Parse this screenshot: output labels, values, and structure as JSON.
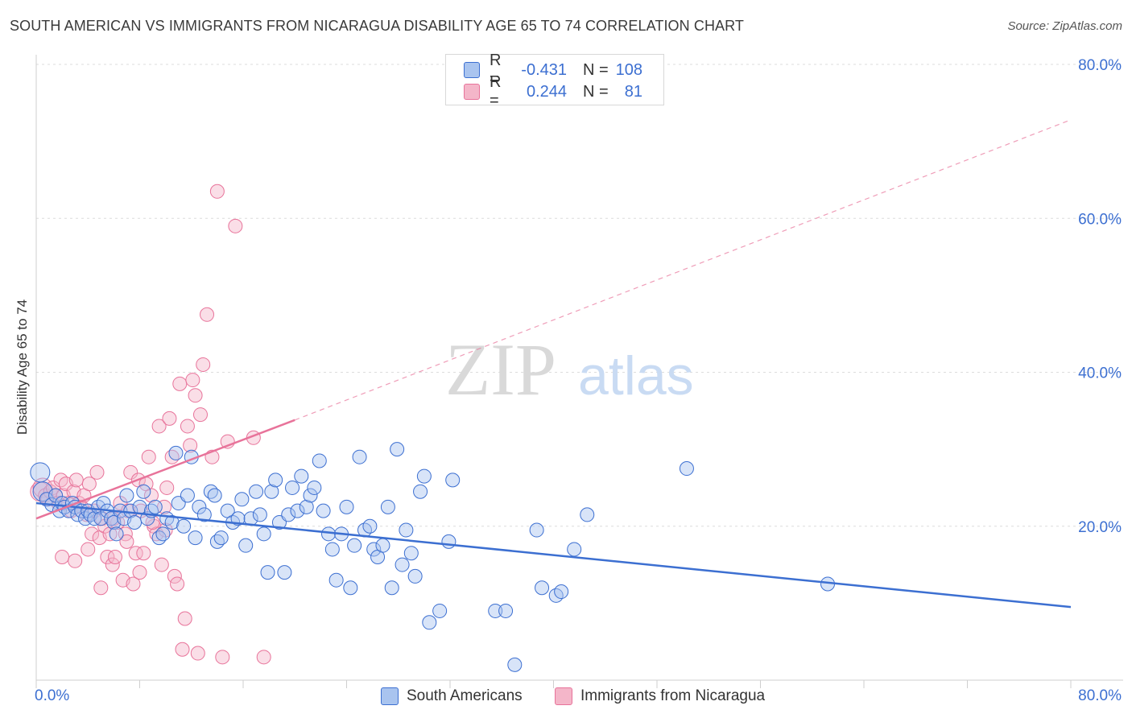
{
  "title": "SOUTH AMERICAN VS IMMIGRANTS FROM NICARAGUA DISABILITY AGE 65 TO 74 CORRELATION CHART",
  "source": "Source: ZipAtlas.com",
  "watermark": {
    "zip": "ZIP",
    "atlas": "atlas"
  },
  "legend": {
    "rows": [
      {
        "r_label": "R =",
        "r_value": "-0.431",
        "n_label": "N =",
        "n_value": "108"
      },
      {
        "r_label": "R =",
        "r_value": "0.244",
        "n_label": "N =",
        "n_value": "81"
      }
    ]
  },
  "chart_data": {
    "type": "scatter",
    "title": "SOUTH AMERICAN VS IMMIGRANTS FROM NICARAGUA DISABILITY AGE 65 TO 74 CORRELATION CHART",
    "xlabel": "",
    "ylabel": "Disability Age 65 to 74",
    "xlim": [
      0,
      80
    ],
    "ylim": [
      0,
      80
    ],
    "x_tick_labels": [
      "0.0%",
      "80.0%"
    ],
    "y_tick_labels": [
      "20.0%",
      "40.0%",
      "60.0%",
      "80.0%"
    ],
    "y_ticks": [
      20,
      40,
      60,
      80
    ],
    "colors": {
      "blue": "#3c6fd1",
      "blue_fill": "#a9c4ef",
      "pink": "#e8739a",
      "pink_fill": "#f4b6c9"
    },
    "series": [
      {
        "name": "South Americans",
        "color": "#3c6fd1",
        "r": -0.431,
        "n": 108,
        "trend": {
          "x": [
            0,
            80
          ],
          "y": [
            23.0,
            9.5
          ]
        },
        "points": [
          [
            0.3,
            27
          ],
          [
            0.5,
            24.5
          ],
          [
            0.8,
            23.5
          ],
          [
            1.2,
            22.8
          ],
          [
            1.5,
            24
          ],
          [
            1.8,
            22
          ],
          [
            2.0,
            23
          ],
          [
            2.2,
            22.5
          ],
          [
            2.5,
            22
          ],
          [
            2.8,
            23
          ],
          [
            3.0,
            22.5
          ],
          [
            3.2,
            21.5
          ],
          [
            3.5,
            22
          ],
          [
            3.8,
            21
          ],
          [
            4.0,
            22
          ],
          [
            4.2,
            21.5
          ],
          [
            4.5,
            21
          ],
          [
            4.8,
            22.5
          ],
          [
            5.0,
            21
          ],
          [
            5.2,
            23
          ],
          [
            5.5,
            22
          ],
          [
            5.8,
            21
          ],
          [
            6.0,
            20.5
          ],
          [
            6.2,
            19
          ],
          [
            6.5,
            22
          ],
          [
            6.8,
            21
          ],
          [
            7.0,
            24
          ],
          [
            7.3,
            22
          ],
          [
            7.6,
            20.5
          ],
          [
            8.0,
            22.5
          ],
          [
            8.3,
            24.5
          ],
          [
            8.6,
            21
          ],
          [
            8.9,
            22
          ],
          [
            9.2,
            22.5
          ],
          [
            9.5,
            18.5
          ],
          [
            9.8,
            19
          ],
          [
            10.1,
            21
          ],
          [
            10.5,
            20.5
          ],
          [
            10.8,
            29.5
          ],
          [
            11.0,
            23
          ],
          [
            11.4,
            20
          ],
          [
            11.7,
            24
          ],
          [
            12.0,
            29
          ],
          [
            12.3,
            18.5
          ],
          [
            12.6,
            22.5
          ],
          [
            13.0,
            21.5
          ],
          [
            13.5,
            24.5
          ],
          [
            13.8,
            24
          ],
          [
            14.0,
            18
          ],
          [
            14.3,
            18.5
          ],
          [
            14.8,
            22
          ],
          [
            15.2,
            20.5
          ],
          [
            15.6,
            21
          ],
          [
            15.9,
            23.5
          ],
          [
            16.2,
            17.5
          ],
          [
            16.6,
            21
          ],
          [
            17.0,
            24.5
          ],
          [
            17.3,
            21.5
          ],
          [
            17.6,
            19
          ],
          [
            17.9,
            14
          ],
          [
            18.2,
            24.5
          ],
          [
            18.5,
            26
          ],
          [
            18.8,
            20.5
          ],
          [
            19.2,
            14
          ],
          [
            19.5,
            21.5
          ],
          [
            19.8,
            25
          ],
          [
            20.2,
            22
          ],
          [
            20.5,
            26.5
          ],
          [
            20.9,
            22.5
          ],
          [
            21.2,
            24
          ],
          [
            21.5,
            25
          ],
          [
            21.9,
            28.5
          ],
          [
            22.2,
            22
          ],
          [
            22.6,
            19
          ],
          [
            22.9,
            17
          ],
          [
            23.2,
            13
          ],
          [
            23.6,
            19
          ],
          [
            24.0,
            22.5
          ],
          [
            24.3,
            12
          ],
          [
            24.6,
            17.5
          ],
          [
            25.0,
            29
          ],
          [
            25.4,
            19.5
          ],
          [
            25.8,
            20
          ],
          [
            26.1,
            17
          ],
          [
            26.4,
            16
          ],
          [
            26.8,
            17.5
          ],
          [
            27.2,
            22.5
          ],
          [
            27.5,
            12
          ],
          [
            27.9,
            30
          ],
          [
            28.3,
            15
          ],
          [
            28.6,
            19.5
          ],
          [
            29.0,
            16.5
          ],
          [
            29.3,
            13.5
          ],
          [
            29.7,
            24.5
          ],
          [
            30.0,
            26.5
          ],
          [
            30.4,
            7.5
          ],
          [
            31.2,
            9
          ],
          [
            31.9,
            18
          ],
          [
            32.2,
            26
          ],
          [
            35.5,
            9
          ],
          [
            36.3,
            9
          ],
          [
            37.0,
            2
          ],
          [
            38.7,
            19.5
          ],
          [
            39.1,
            12
          ],
          [
            40.2,
            11
          ],
          [
            40.6,
            11.5
          ],
          [
            41.6,
            17
          ],
          [
            42.6,
            21.5
          ],
          [
            50.3,
            27.5
          ],
          [
            61.2,
            12.5
          ]
        ]
      },
      {
        "name": "Immigrants from Nicaragua",
        "color": "#e8739a",
        "r": 0.244,
        "n": 81,
        "trend": {
          "x": [
            0,
            20
          ],
          "y": [
            21.0,
            33.8
          ]
        },
        "trend_ext": {
          "x": [
            20,
            80
          ],
          "y": [
            33.8,
            72.8
          ]
        },
        "points": [
          [
            0.3,
            24.5
          ],
          [
            0.5,
            25
          ],
          [
            0.7,
            24
          ],
          [
            0.9,
            23.5
          ],
          [
            1.1,
            24.5
          ],
          [
            1.3,
            25
          ],
          [
            1.5,
            24
          ],
          [
            1.7,
            23
          ],
          [
            1.9,
            26
          ],
          [
            2.1,
            24
          ],
          [
            2.3,
            25.5
          ],
          [
            2.5,
            23
          ],
          [
            2.7,
            22
          ],
          [
            2.9,
            24.5
          ],
          [
            3.1,
            26
          ],
          [
            3.3,
            23
          ],
          [
            3.5,
            22.5
          ],
          [
            3.7,
            24
          ],
          [
            3.9,
            21.5
          ],
          [
            4.1,
            25.5
          ],
          [
            4.3,
            19
          ],
          [
            4.5,
            22
          ],
          [
            4.7,
            27
          ],
          [
            4.9,
            18.5
          ],
          [
            5.1,
            21
          ],
          [
            5.3,
            20
          ],
          [
            5.5,
            16
          ],
          [
            5.7,
            19
          ],
          [
            5.9,
            15
          ],
          [
            6.1,
            16
          ],
          [
            6.3,
            20.5
          ],
          [
            6.5,
            23
          ],
          [
            6.7,
            13
          ],
          [
            6.9,
            19
          ],
          [
            7.1,
            22
          ],
          [
            7.3,
            27
          ],
          [
            7.5,
            12.5
          ],
          [
            7.7,
            16.5
          ],
          [
            7.9,
            26
          ],
          [
            8.1,
            22
          ],
          [
            8.3,
            16.5
          ],
          [
            8.5,
            25.5
          ],
          [
            8.7,
            29
          ],
          [
            8.9,
            24
          ],
          [
            9.1,
            20
          ],
          [
            9.3,
            19
          ],
          [
            9.5,
            33
          ],
          [
            9.7,
            15
          ],
          [
            9.9,
            22.5
          ],
          [
            10.1,
            25
          ],
          [
            10.3,
            34
          ],
          [
            10.5,
            29
          ],
          [
            10.7,
            13.5
          ],
          [
            10.9,
            12.5
          ],
          [
            11.1,
            38.5
          ],
          [
            11.3,
            4
          ],
          [
            11.5,
            8
          ],
          [
            11.7,
            33
          ],
          [
            11.9,
            30.5
          ],
          [
            12.1,
            39
          ],
          [
            12.3,
            37
          ],
          [
            12.5,
            3.5
          ],
          [
            12.7,
            34.5
          ],
          [
            12.9,
            41
          ],
          [
            13.2,
            47.5
          ],
          [
            13.6,
            29
          ],
          [
            14.0,
            63.5
          ],
          [
            14.4,
            3
          ],
          [
            14.8,
            31
          ],
          [
            15.4,
            59
          ],
          [
            16.8,
            31.5
          ],
          [
            17.6,
            3
          ],
          [
            2.0,
            16
          ],
          [
            3.0,
            15.5
          ],
          [
            4.0,
            17
          ],
          [
            5.0,
            12
          ],
          [
            6.0,
            21
          ],
          [
            7.0,
            18
          ],
          [
            8.0,
            14
          ],
          [
            9.0,
            20.5
          ],
          [
            10.0,
            19.5
          ]
        ]
      }
    ]
  }
}
